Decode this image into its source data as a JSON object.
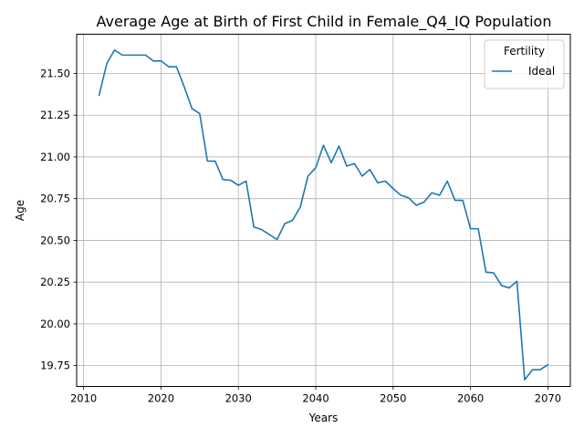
{
  "chart_data": {
    "type": "line",
    "title": "Average Age at Birth of First Child in Female_Q4_IQ Population",
    "xlabel": "Years",
    "ylabel": "Age",
    "xlim": [
      2009.1,
      2072.9
    ],
    "ylim": [
      19.625,
      21.735
    ],
    "x_ticks": [
      2010,
      2020,
      2030,
      2040,
      2050,
      2060,
      2070
    ],
    "x_tick_labels": [
      "2010",
      "2020",
      "2030",
      "2040",
      "2050",
      "2060",
      "2070"
    ],
    "y_ticks": [
      19.75,
      20.0,
      20.25,
      20.5,
      20.75,
      21.0,
      21.25,
      21.5
    ],
    "y_tick_labels": [
      "19.75",
      "20.00",
      "20.25",
      "20.50",
      "20.75",
      "21.00",
      "21.25",
      "21.50"
    ],
    "grid": true,
    "legend": {
      "title": "Fertility",
      "position": "top-right"
    },
    "series": [
      {
        "name": "Ideal",
        "color": "#1f77b4",
        "x": [
          2012,
          2013,
          2014,
          2015,
          2016,
          2017,
          2018,
          2019,
          2020,
          2021,
          2022,
          2023,
          2024,
          2025,
          2026,
          2027,
          2028,
          2029,
          2030,
          2031,
          2032,
          2033,
          2034,
          2035,
          2036,
          2037,
          2038,
          2039,
          2040,
          2041,
          2042,
          2043,
          2044,
          2045,
          2046,
          2047,
          2048,
          2049,
          2050,
          2051,
          2052,
          2053,
          2054,
          2055,
          2056,
          2057,
          2058,
          2059,
          2060,
          2061,
          2062,
          2063,
          2064,
          2065,
          2066,
          2067,
          2068,
          2069,
          2070
        ],
        "values": [
          21.37,
          21.56,
          21.64,
          21.61,
          21.61,
          21.61,
          21.61,
          21.575,
          21.575,
          21.54,
          21.54,
          21.42,
          21.29,
          21.26,
          20.975,
          20.975,
          20.865,
          20.86,
          20.83,
          20.855,
          20.58,
          20.565,
          20.535,
          20.505,
          20.6,
          20.62,
          20.7,
          20.885,
          20.935,
          21.07,
          20.965,
          21.065,
          20.945,
          20.96,
          20.885,
          20.925,
          20.845,
          20.855,
          20.81,
          20.77,
          20.755,
          20.71,
          20.73,
          20.785,
          20.77,
          20.855,
          20.74,
          20.74,
          20.57,
          20.57,
          20.31,
          20.305,
          20.23,
          20.215,
          20.255,
          19.665,
          19.725,
          19.725,
          19.755
        ]
      }
    ]
  }
}
